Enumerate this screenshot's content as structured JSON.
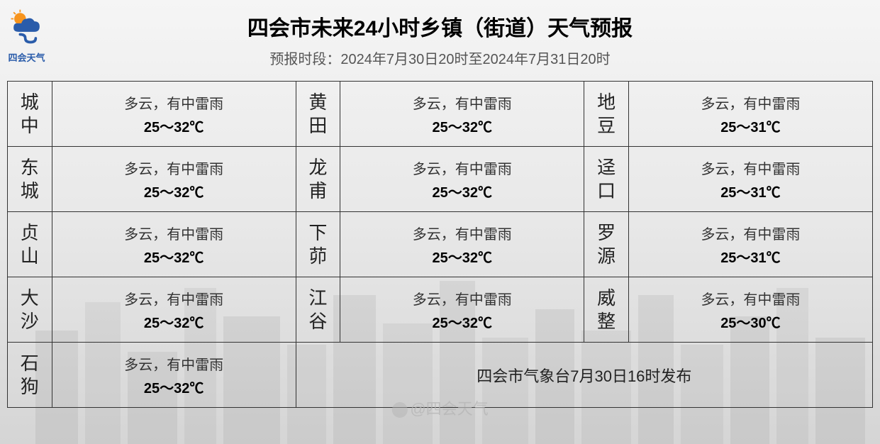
{
  "logo_text": "四会天气",
  "title": "四会市未来24小时乡镇（街道）天气预报",
  "subtitle": "预报时段：2024年7月30日20时至2024年7月31日20时",
  "colors": {
    "border": "#333333",
    "title_color": "#000000",
    "subtitle_color": "#555555",
    "text_color": "#333333",
    "logo_blue": "#2a5caa",
    "logo_orange": "#f7941d",
    "bg_gradient_top": "#f5f5f5",
    "bg_gradient_bottom": "#d5d5d5"
  },
  "table": {
    "rows": [
      [
        {
          "town": "城中",
          "desc": "多云，有中雷雨",
          "temp": "25～32℃"
        },
        {
          "town": "黄田",
          "desc": "多云，有中雷雨",
          "temp": "25～32℃"
        },
        {
          "town": "地豆",
          "desc": "多云，有中雷雨",
          "temp": "25～31℃"
        }
      ],
      [
        {
          "town": "东城",
          "desc": "多云，有中雷雨",
          "temp": "25～32℃"
        },
        {
          "town": "龙甫",
          "desc": "多云，有中雷雨",
          "temp": "25～32℃"
        },
        {
          "town": "迳口",
          "desc": "多云，有中雷雨",
          "temp": "25～31℃"
        }
      ],
      [
        {
          "town": "贞山",
          "desc": "多云，有中雷雨",
          "temp": "25～32℃"
        },
        {
          "town": "下茆",
          "desc": "多云，有中雷雨",
          "temp": "25～32℃"
        },
        {
          "town": "罗源",
          "desc": "多云，有中雷雨",
          "temp": "25～31℃"
        }
      ],
      [
        {
          "town": "大沙",
          "desc": "多云，有中雷雨",
          "temp": "25～32℃"
        },
        {
          "town": "江谷",
          "desc": "多云，有中雷雨",
          "temp": "25～32℃"
        },
        {
          "town": "威整",
          "desc": "多云，有中雷雨",
          "temp": "25～30℃"
        }
      ]
    ],
    "last_row": {
      "town": "石狗",
      "desc": "多云，有中雷雨",
      "temp": "25～32℃"
    }
  },
  "footer": "四会市气象台7月30日16时发布",
  "watermark": "@四会天气"
}
